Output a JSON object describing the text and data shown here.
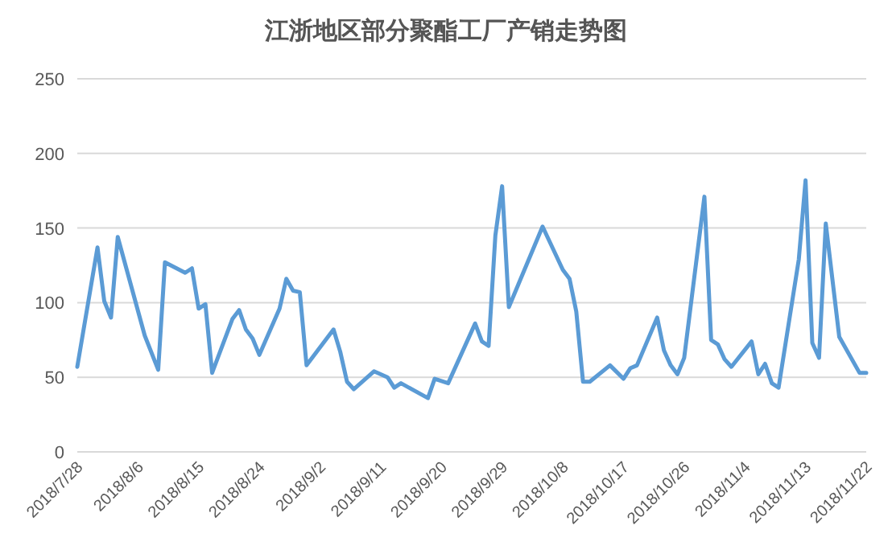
{
  "chart_data": {
    "type": "line",
    "title": "江浙地区部分聚酯工厂产销走势图",
    "x": [
      "2018-07-28",
      "2018-07-31",
      "2018-08-01",
      "2018-08-02",
      "2018-08-03",
      "2018-08-07",
      "2018-08-09",
      "2018-08-10",
      "2018-08-13",
      "2018-08-14",
      "2018-08-15",
      "2018-08-16",
      "2018-08-17",
      "2018-08-20",
      "2018-08-21",
      "2018-08-22",
      "2018-08-23",
      "2018-08-24",
      "2018-08-27",
      "2018-08-28",
      "2018-08-29",
      "2018-08-30",
      "2018-08-31",
      "2018-09-04",
      "2018-09-05",
      "2018-09-06",
      "2018-09-07",
      "2018-09-10",
      "2018-09-12",
      "2018-09-13",
      "2018-09-14",
      "2018-09-18",
      "2018-09-19",
      "2018-09-21",
      "2018-09-25",
      "2018-09-26",
      "2018-09-27",
      "2018-09-28",
      "2018-09-29",
      "2018-09-30",
      "2018-10-05",
      "2018-10-08",
      "2018-10-09",
      "2018-10-10",
      "2018-10-11",
      "2018-10-12",
      "2018-10-15",
      "2018-10-17",
      "2018-10-18",
      "2018-10-19",
      "2018-10-22",
      "2018-10-23",
      "2018-10-24",
      "2018-10-25",
      "2018-10-26",
      "2018-10-29",
      "2018-10-30",
      "2018-10-31",
      "2018-11-01",
      "2018-11-02",
      "2018-11-05",
      "2018-11-06",
      "2018-11-07",
      "2018-11-08",
      "2018-11-09",
      "2018-11-12",
      "2018-11-13",
      "2018-11-14",
      "2018-11-15",
      "2018-11-16",
      "2018-11-18",
      "2018-11-21",
      "2018-11-22"
    ],
    "series": [
      {
        "color": "#5b9bd5",
        "values": [
          57,
          137,
          101,
          90,
          144,
          78,
          55,
          127,
          120,
          123,
          96,
          99,
          53,
          89,
          95,
          82,
          76,
          65,
          96,
          116,
          108,
          107,
          58,
          82,
          67,
          47,
          42,
          54,
          50,
          43,
          46,
          36,
          49,
          46,
          86,
          74,
          71,
          145,
          178,
          97,
          151,
          122,
          116,
          94,
          47,
          47,
          58,
          49,
          56,
          58,
          90,
          68,
          58,
          52,
          63,
          171,
          75,
          72,
          62,
          57,
          74,
          52,
          59,
          46,
          43,
          129,
          182,
          73,
          63,
          153,
          77,
          53,
          53
        ]
      }
    ],
    "xlim": [
      "2018-07-28",
      "2018-11-22"
    ],
    "xticks": [
      {
        "value": "2018-07-28",
        "label": "2018/7/28"
      },
      {
        "value": "2018-08-06",
        "label": "2018/8/6"
      },
      {
        "value": "2018-08-15",
        "label": "2018/8/15"
      },
      {
        "value": "2018-08-24",
        "label": "2018/8/24"
      },
      {
        "value": "2018-09-02",
        "label": "2018/9/2"
      },
      {
        "value": "2018-09-11",
        "label": "2018/9/11"
      },
      {
        "value": "2018-09-20",
        "label": "2018/9/20"
      },
      {
        "value": "2018-09-29",
        "label": "2018/9/29"
      },
      {
        "value": "2018-10-08",
        "label": "2018/10/8"
      },
      {
        "value": "2018-10-17",
        "label": "2018/10/17"
      },
      {
        "value": "2018-10-26",
        "label": "2018/10/26"
      },
      {
        "value": "2018-11-04",
        "label": "2018/11/4"
      },
      {
        "value": "2018-11-13",
        "label": "2018/11/13"
      },
      {
        "value": "2018-11-22",
        "label": "2018/11/22"
      }
    ],
    "ylim": [
      0,
      250
    ],
    "yticks": [
      0,
      50,
      100,
      150,
      200,
      250
    ],
    "grid": "y"
  }
}
